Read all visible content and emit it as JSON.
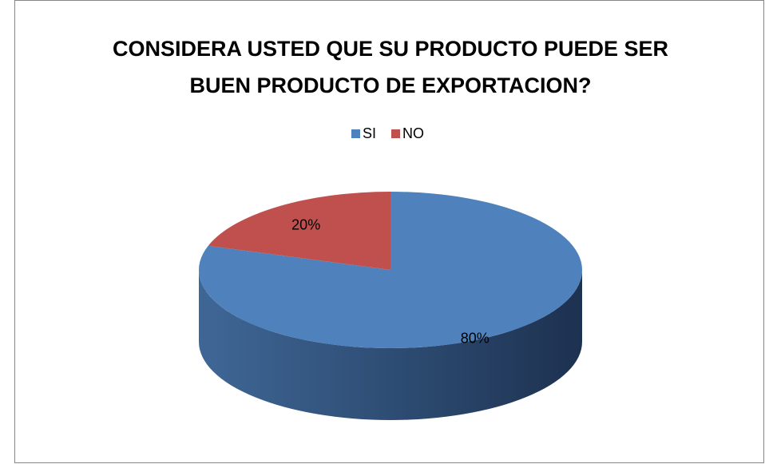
{
  "chart_data": {
    "type": "pie",
    "title": "CONSIDERA USTED QUE SU PRODUCTO PUEDE SER BUEN PRODUCTO DE EXPORTACION?",
    "categories": [
      "SI",
      "NO"
    ],
    "values": [
      80,
      20
    ],
    "value_labels": [
      "80%",
      "20%"
    ],
    "colors": [
      "#4f81bd",
      "#c0504d"
    ],
    "legend": "top"
  }
}
